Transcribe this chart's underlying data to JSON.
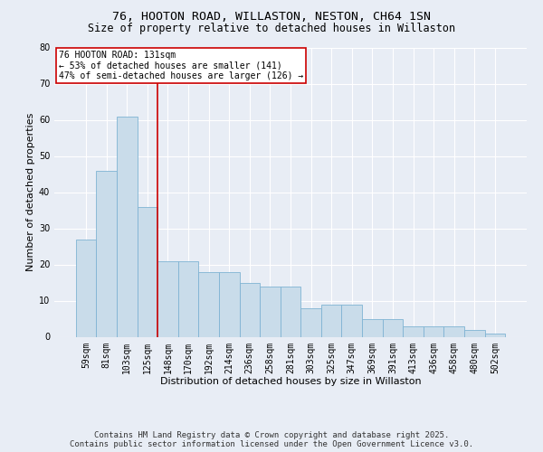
{
  "title": "76, HOOTON ROAD, WILLASTON, NESTON, CH64 1SN",
  "subtitle": "Size of property relative to detached houses in Willaston",
  "xlabel": "Distribution of detached houses by size in Willaston",
  "ylabel": "Number of detached properties",
  "categories": [
    "59sqm",
    "81sqm",
    "103sqm",
    "125sqm",
    "148sqm",
    "170sqm",
    "192sqm",
    "214sqm",
    "236sqm",
    "258sqm",
    "281sqm",
    "303sqm",
    "325sqm",
    "347sqm",
    "369sqm",
    "391sqm",
    "413sqm",
    "436sqm",
    "458sqm",
    "480sqm",
    "502sqm"
  ],
  "bar_values": [
    27,
    46,
    61,
    36,
    21,
    21,
    18,
    18,
    15,
    14,
    14,
    8,
    9,
    9,
    5,
    5,
    3,
    3,
    3,
    2,
    1
  ],
  "bar_color": "#c9dcea",
  "bar_edgecolor": "#7fb3d3",
  "vline_x": 3.5,
  "vline_color": "#cc0000",
  "annotation_text": "76 HOOTON ROAD: 131sqm\n← 53% of detached houses are smaller (141)\n47% of semi-detached houses are larger (126) →",
  "annotation_box_color": "#ffffff",
  "annotation_box_edgecolor": "#cc0000",
  "ylim": [
    0,
    80
  ],
  "yticks": [
    0,
    10,
    20,
    30,
    40,
    50,
    60,
    70,
    80
  ],
  "bg_color": "#e8edf5",
  "plot_bg_color": "#e8edf5",
  "grid_color": "#ffffff",
  "footer": "Contains HM Land Registry data © Crown copyright and database right 2025.\nContains public sector information licensed under the Open Government Licence v3.0.",
  "title_fontsize": 9.5,
  "subtitle_fontsize": 8.5,
  "xlabel_fontsize": 8,
  "ylabel_fontsize": 8,
  "tick_fontsize": 7,
  "footer_fontsize": 6.5,
  "annotation_fontsize": 7
}
